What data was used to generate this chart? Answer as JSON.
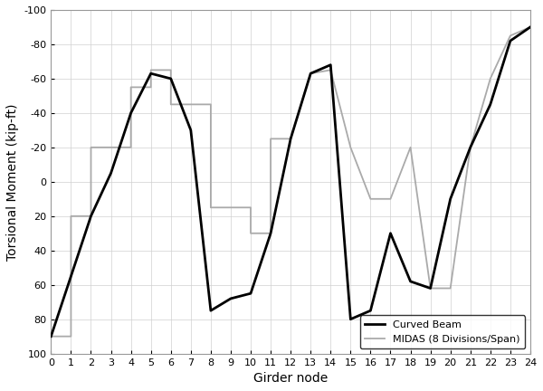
{
  "title": "",
  "xlabel": "Girder node",
  "ylabel": "Torsional Moment (kip-ft)",
  "ylim_bottom": 100,
  "ylim_top": -100,
  "xlim": [
    0,
    24
  ],
  "xticks": [
    0,
    1,
    2,
    3,
    4,
    5,
    6,
    7,
    8,
    9,
    10,
    11,
    12,
    13,
    14,
    15,
    16,
    17,
    18,
    19,
    20,
    21,
    22,
    23,
    24
  ],
  "yticks": [
    -100,
    -80,
    -60,
    -40,
    -20,
    0,
    20,
    40,
    60,
    80,
    100
  ],
  "curved_beam_x": [
    0,
    1,
    2,
    3,
    4,
    5,
    6,
    7,
    8,
    9,
    10,
    11,
    12,
    13,
    14,
    15,
    16,
    17,
    18,
    19,
    20,
    21,
    22,
    23,
    24
  ],
  "curved_beam_y": [
    90,
    55,
    20,
    -5,
    -40,
    -63,
    -60,
    -30,
    75,
    68,
    65,
    30,
    -25,
    -63,
    -68,
    80,
    75,
    30,
    58,
    62,
    10,
    -20,
    -45,
    -82,
    -90
  ],
  "midas_x": [
    0,
    1,
    1,
    2,
    2,
    3,
    3,
    4,
    4,
    5,
    5,
    6,
    6,
    7,
    7,
    8,
    8,
    9,
    9,
    10,
    10,
    11,
    11,
    12,
    12,
    13,
    13,
    14,
    14,
    15,
    15,
    16,
    16,
    17,
    17,
    18,
    18,
    19,
    19,
    20,
    20,
    21,
    21,
    22,
    22,
    23,
    23,
    24
  ],
  "midas_y": [
    90,
    90,
    20,
    20,
    -20,
    -20,
    -20,
    -20,
    -55,
    -55,
    -65,
    -65,
    -45,
    -45,
    -45,
    -45,
    15,
    15,
    15,
    15,
    30,
    30,
    -25,
    -25,
    -25,
    -63,
    -63,
    -65,
    -65,
    -20,
    -20,
    10,
    10,
    10,
    10,
    -20,
    -20,
    62,
    62,
    62,
    62,
    -20,
    -20,
    -60,
    -60,
    -85,
    -85,
    -90
  ],
  "curved_beam_color": "#000000",
  "midas_color": "#aaaaaa",
  "curved_beam_lw": 2.0,
  "midas_lw": 1.3,
  "background_color": "#ffffff",
  "grid_color": "#d0d0d0"
}
